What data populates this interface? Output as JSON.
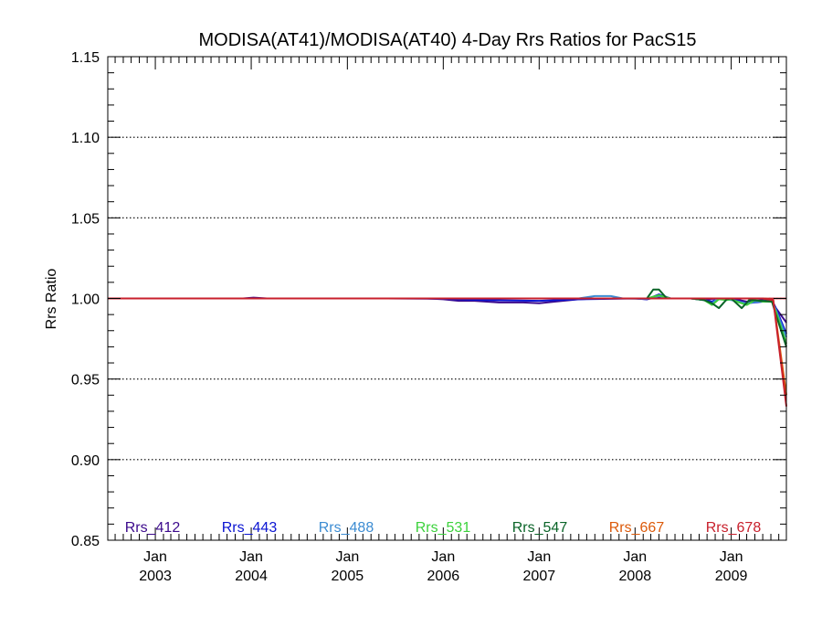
{
  "chart_data": {
    "type": "line",
    "title": "MODISA(AT41)/MODISA(AT40) 4-Day Rrs Ratios for PacS15",
    "xlabel": "",
    "ylabel": "Rrs Ratio",
    "xlim": [
      "2002-07-04",
      "2009-07-30"
    ],
    "ylim": [
      0.85,
      1.15
    ],
    "yticks": [
      0.85,
      0.9,
      0.95,
      1.0,
      1.05,
      1.1,
      1.15
    ],
    "ytick_labels": [
      "0.85",
      "0.90",
      "0.95",
      "1.00",
      "1.05",
      "1.10",
      "1.15"
    ],
    "xticks": [
      {
        "date": "2003-01-01",
        "month": "Jan",
        "year": "2003"
      },
      {
        "date": "2004-01-01",
        "month": "Jan",
        "year": "2004"
      },
      {
        "date": "2005-01-01",
        "month": "Jan",
        "year": "2005"
      },
      {
        "date": "2006-01-01",
        "month": "Jan",
        "year": "2006"
      },
      {
        "date": "2007-01-01",
        "month": "Jan",
        "year": "2007"
      },
      {
        "date": "2008-01-01",
        "month": "Jan",
        "year": "2008"
      },
      {
        "date": "2009-01-01",
        "month": "Jan",
        "year": "2009"
      }
    ],
    "grid": "horizontal dotted at major y ticks",
    "reference_line": {
      "y": 1.0,
      "color": "#c8202c"
    },
    "legend_position": "bottom inside plot",
    "series": [
      {
        "name": "Rrs_412",
        "color": "#3c0a8c",
        "points": [
          [
            "2002-07-04",
            1.0
          ],
          [
            "2003-06-01",
            1.0
          ],
          [
            "2003-12-01",
            1.0
          ],
          [
            "2004-01-10",
            1.0005
          ],
          [
            "2004-03-01",
            1.0
          ],
          [
            "2005-06-01",
            1.0
          ],
          [
            "2005-11-01",
            1.0
          ],
          [
            "2006-01-01",
            0.9995
          ],
          [
            "2006-03-01",
            0.9985
          ],
          [
            "2006-05-01",
            0.9985
          ],
          [
            "2006-08-01",
            0.9975
          ],
          [
            "2006-11-01",
            0.9975
          ],
          [
            "2007-01-01",
            0.997
          ],
          [
            "2007-03-01",
            0.998
          ],
          [
            "2007-06-01",
            0.9995
          ],
          [
            "2007-08-01",
            1.0
          ],
          [
            "2008-01-01",
            1.0
          ],
          [
            "2008-02-15",
            0.9995
          ],
          [
            "2008-04-01",
            1.001
          ],
          [
            "2008-05-15",
            1.0
          ],
          [
            "2008-08-01",
            1.0
          ],
          [
            "2008-09-20",
            0.999
          ],
          [
            "2008-11-01",
            1.0
          ],
          [
            "2009-01-01",
            1.0
          ],
          [
            "2009-03-01",
            0.998
          ],
          [
            "2009-05-01",
            0.999
          ],
          [
            "2009-06-05",
            0.999
          ],
          [
            "2009-06-20",
            0.994
          ],
          [
            "2009-07-30",
            0.985
          ]
        ]
      },
      {
        "name": "Rrs_443",
        "color": "#0a14d2",
        "points": [
          [
            "2002-07-04",
            1.0
          ],
          [
            "2005-06-01",
            1.0
          ],
          [
            "2006-01-01",
            0.9998
          ],
          [
            "2006-06-01",
            0.999
          ],
          [
            "2007-01-01",
            0.9985
          ],
          [
            "2007-06-01",
            0.9995
          ],
          [
            "2008-01-01",
            1.0
          ],
          [
            "2008-02-15",
            0.9995
          ],
          [
            "2008-04-01",
            1.0025
          ],
          [
            "2008-05-15",
            1.0
          ],
          [
            "2008-08-01",
            1.0
          ],
          [
            "2008-09-20",
            0.999
          ],
          [
            "2008-10-20",
            0.998
          ],
          [
            "2008-11-10",
            1.0
          ],
          [
            "2009-01-01",
            0.9995
          ],
          [
            "2009-03-01",
            0.997
          ],
          [
            "2009-05-01",
            0.998
          ],
          [
            "2009-06-05",
            0.998
          ],
          [
            "2009-06-20",
            0.994
          ],
          [
            "2009-07-30",
            0.978
          ]
        ]
      },
      {
        "name": "Rrs_488",
        "color": "#3c8cd2",
        "points": [
          [
            "2002-07-04",
            1.0
          ],
          [
            "2006-06-01",
            1.0
          ],
          [
            "2007-06-01",
            1.0
          ],
          [
            "2007-08-01",
            1.0015
          ],
          [
            "2007-10-01",
            1.0015
          ],
          [
            "2007-11-15",
            1.0
          ],
          [
            "2008-02-15",
            0.9998
          ],
          [
            "2008-04-01",
            1.0015
          ],
          [
            "2008-05-15",
            1.0
          ],
          [
            "2008-08-01",
            1.0
          ],
          [
            "2008-09-20",
            0.999
          ],
          [
            "2008-10-20",
            0.997
          ],
          [
            "2008-11-10",
            1.0
          ],
          [
            "2009-01-01",
            0.999
          ],
          [
            "2009-03-01",
            0.997
          ],
          [
            "2009-05-01",
            0.9985
          ],
          [
            "2009-06-05",
            0.998
          ],
          [
            "2009-06-20",
            0.993
          ],
          [
            "2009-07-30",
            0.976
          ]
        ]
      },
      {
        "name": "Rrs_531",
        "color": "#3cd23c",
        "points": [
          [
            "2002-07-04",
            1.0
          ],
          [
            "2007-06-01",
            1.0
          ],
          [
            "2008-02-15",
            1.0
          ],
          [
            "2008-04-01",
            1.002
          ],
          [
            "2008-05-15",
            1.0
          ],
          [
            "2008-08-01",
            1.0
          ],
          [
            "2008-09-20",
            0.999
          ],
          [
            "2008-10-20",
            0.996
          ],
          [
            "2008-11-15",
            0.9995
          ],
          [
            "2008-12-15",
            0.999
          ],
          [
            "2009-01-01",
            0.9995
          ],
          [
            "2009-02-01",
            0.9975
          ],
          [
            "2009-03-01",
            0.996
          ],
          [
            "2009-04-01",
            0.999
          ],
          [
            "2009-05-01",
            0.998
          ],
          [
            "2009-06-05",
            0.998
          ],
          [
            "2009-06-20",
            0.992
          ],
          [
            "2009-07-30",
            0.972
          ]
        ]
      },
      {
        "name": "Rrs_547",
        "color": "#0a6428",
        "points": [
          [
            "2002-07-04",
            1.0
          ],
          [
            "2008-01-01",
            1.0
          ],
          [
            "2008-02-15",
            1.0
          ],
          [
            "2008-03-10",
            1.0055
          ],
          [
            "2008-04-01",
            1.0055
          ],
          [
            "2008-05-01",
            1.0
          ],
          [
            "2008-08-01",
            1.0
          ],
          [
            "2008-09-20",
            0.999
          ],
          [
            "2008-10-20",
            0.997
          ],
          [
            "2008-11-15",
            0.994
          ],
          [
            "2008-12-15",
            0.9995
          ],
          [
            "2009-01-01",
            1.0
          ],
          [
            "2009-02-10",
            0.994
          ],
          [
            "2009-03-10",
            0.999
          ],
          [
            "2009-05-01",
            0.9985
          ],
          [
            "2009-06-05",
            0.998
          ],
          [
            "2009-06-20",
            0.99
          ],
          [
            "2009-07-30",
            0.97
          ]
        ]
      },
      {
        "name": "Rrs_667",
        "color": "#dc5a0a",
        "points": [
          [
            "2002-07-04",
            1.0
          ],
          [
            "2009-05-01",
            1.0
          ],
          [
            "2009-06-10",
            0.999
          ],
          [
            "2009-07-30",
            0.94
          ]
        ]
      },
      {
        "name": "Rrs_678",
        "color": "#c8202c",
        "points": [
          [
            "2002-07-04",
            1.0
          ],
          [
            "2009-05-01",
            1.0
          ],
          [
            "2009-06-10",
            0.999
          ],
          [
            "2009-07-30",
            0.933
          ]
        ]
      }
    ]
  }
}
